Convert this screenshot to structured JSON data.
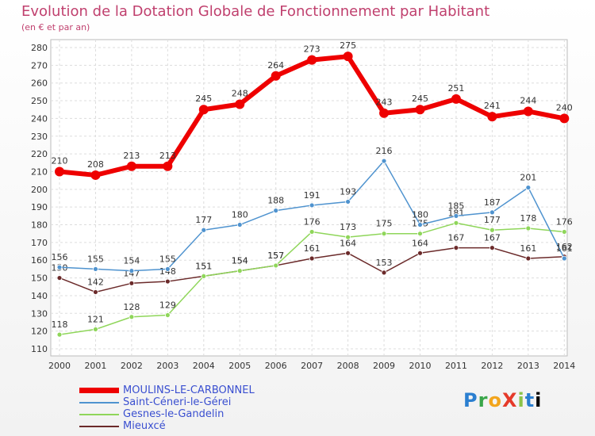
{
  "title": "Evolution de la Dotation Globale de Fonctionnement par Habitant",
  "subtitle": "(en € et par an)",
  "logo": "ProXiti",
  "chart_data": {
    "type": "line",
    "x": [
      2000,
      2001,
      2002,
      2003,
      2004,
      2005,
      2006,
      2007,
      2008,
      2009,
      2010,
      2011,
      2012,
      2013,
      2014
    ],
    "ylim": [
      110,
      280
    ],
    "yticks": [
      110,
      120,
      130,
      140,
      150,
      160,
      170,
      180,
      190,
      200,
      210,
      220,
      230,
      240,
      250,
      260,
      270,
      280
    ],
    "grid": true,
    "legend_position": "bottom-left",
    "series": [
      {
        "name": "MOULINS-LE-CARBONNEL",
        "color": "#ee0000",
        "values": [
          210,
          208,
          213,
          213,
          245,
          248,
          264,
          273,
          275,
          243,
          245,
          251,
          241,
          244,
          240
        ]
      },
      {
        "name": "Saint-Céneri-le-Gérei",
        "color": "#4f93cf",
        "values": [
          156,
          155,
          154,
          155,
          177,
          180,
          188,
          191,
          193,
          216,
          180,
          185,
          187,
          201,
          161
        ]
      },
      {
        "name": "Gesnes-le-Gandelin",
        "color": "#8fd65a",
        "values": [
          118,
          121,
          128,
          129,
          151,
          154,
          157,
          176,
          173,
          175,
          175,
          181,
          177,
          178,
          176
        ]
      },
      {
        "name": "Mieuxcé",
        "color": "#6b2a2a",
        "values": [
          150,
          142,
          147,
          148,
          151,
          154,
          157,
          161,
          164,
          153,
          164,
          167,
          167,
          161,
          162
        ]
      }
    ]
  }
}
